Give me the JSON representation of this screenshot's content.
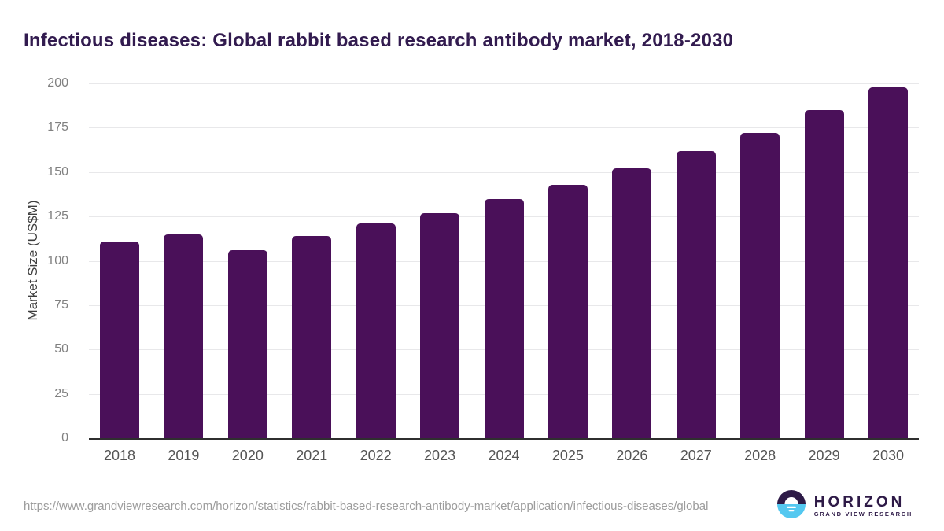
{
  "title": "Infectious diseases: Global rabbit based research antibody market, 2018-2030",
  "chart_data": {
    "type": "bar",
    "categories": [
      "2018",
      "2019",
      "2020",
      "2021",
      "2022",
      "2023",
      "2024",
      "2025",
      "2026",
      "2027",
      "2028",
      "2029",
      "2030"
    ],
    "values": [
      111,
      115,
      106,
      114,
      121,
      127,
      135,
      143,
      152,
      162,
      172,
      185,
      198
    ],
    "title": "Infectious diseases: Global rabbit based research antibody market, 2018-2030",
    "xlabel": "",
    "ylabel": "Market Size (US$M)",
    "ylim": [
      0,
      200
    ],
    "yticks": [
      0,
      25,
      50,
      75,
      100,
      125,
      150,
      175,
      200
    ],
    "grid": true,
    "legend": "none"
  },
  "colors": {
    "bar": "#4a1059",
    "title": "#321b4f",
    "grid": "#e8e8ea",
    "axis": "#2f2f2f",
    "y_tick": "#808080",
    "x_tick": "#545454",
    "url_text": "#9c9c9c",
    "logo_purple": "#2d1a47",
    "logo_blue": "#54c8f0"
  },
  "footer": {
    "source_url": "https://www.grandviewresearch.com/horizon/statistics/rabbit-based-research-antibody-market/application/infectious-diseases/global",
    "logo": {
      "name": "HORIZON",
      "subtitle": "GRAND VIEW RESEARCH"
    }
  }
}
